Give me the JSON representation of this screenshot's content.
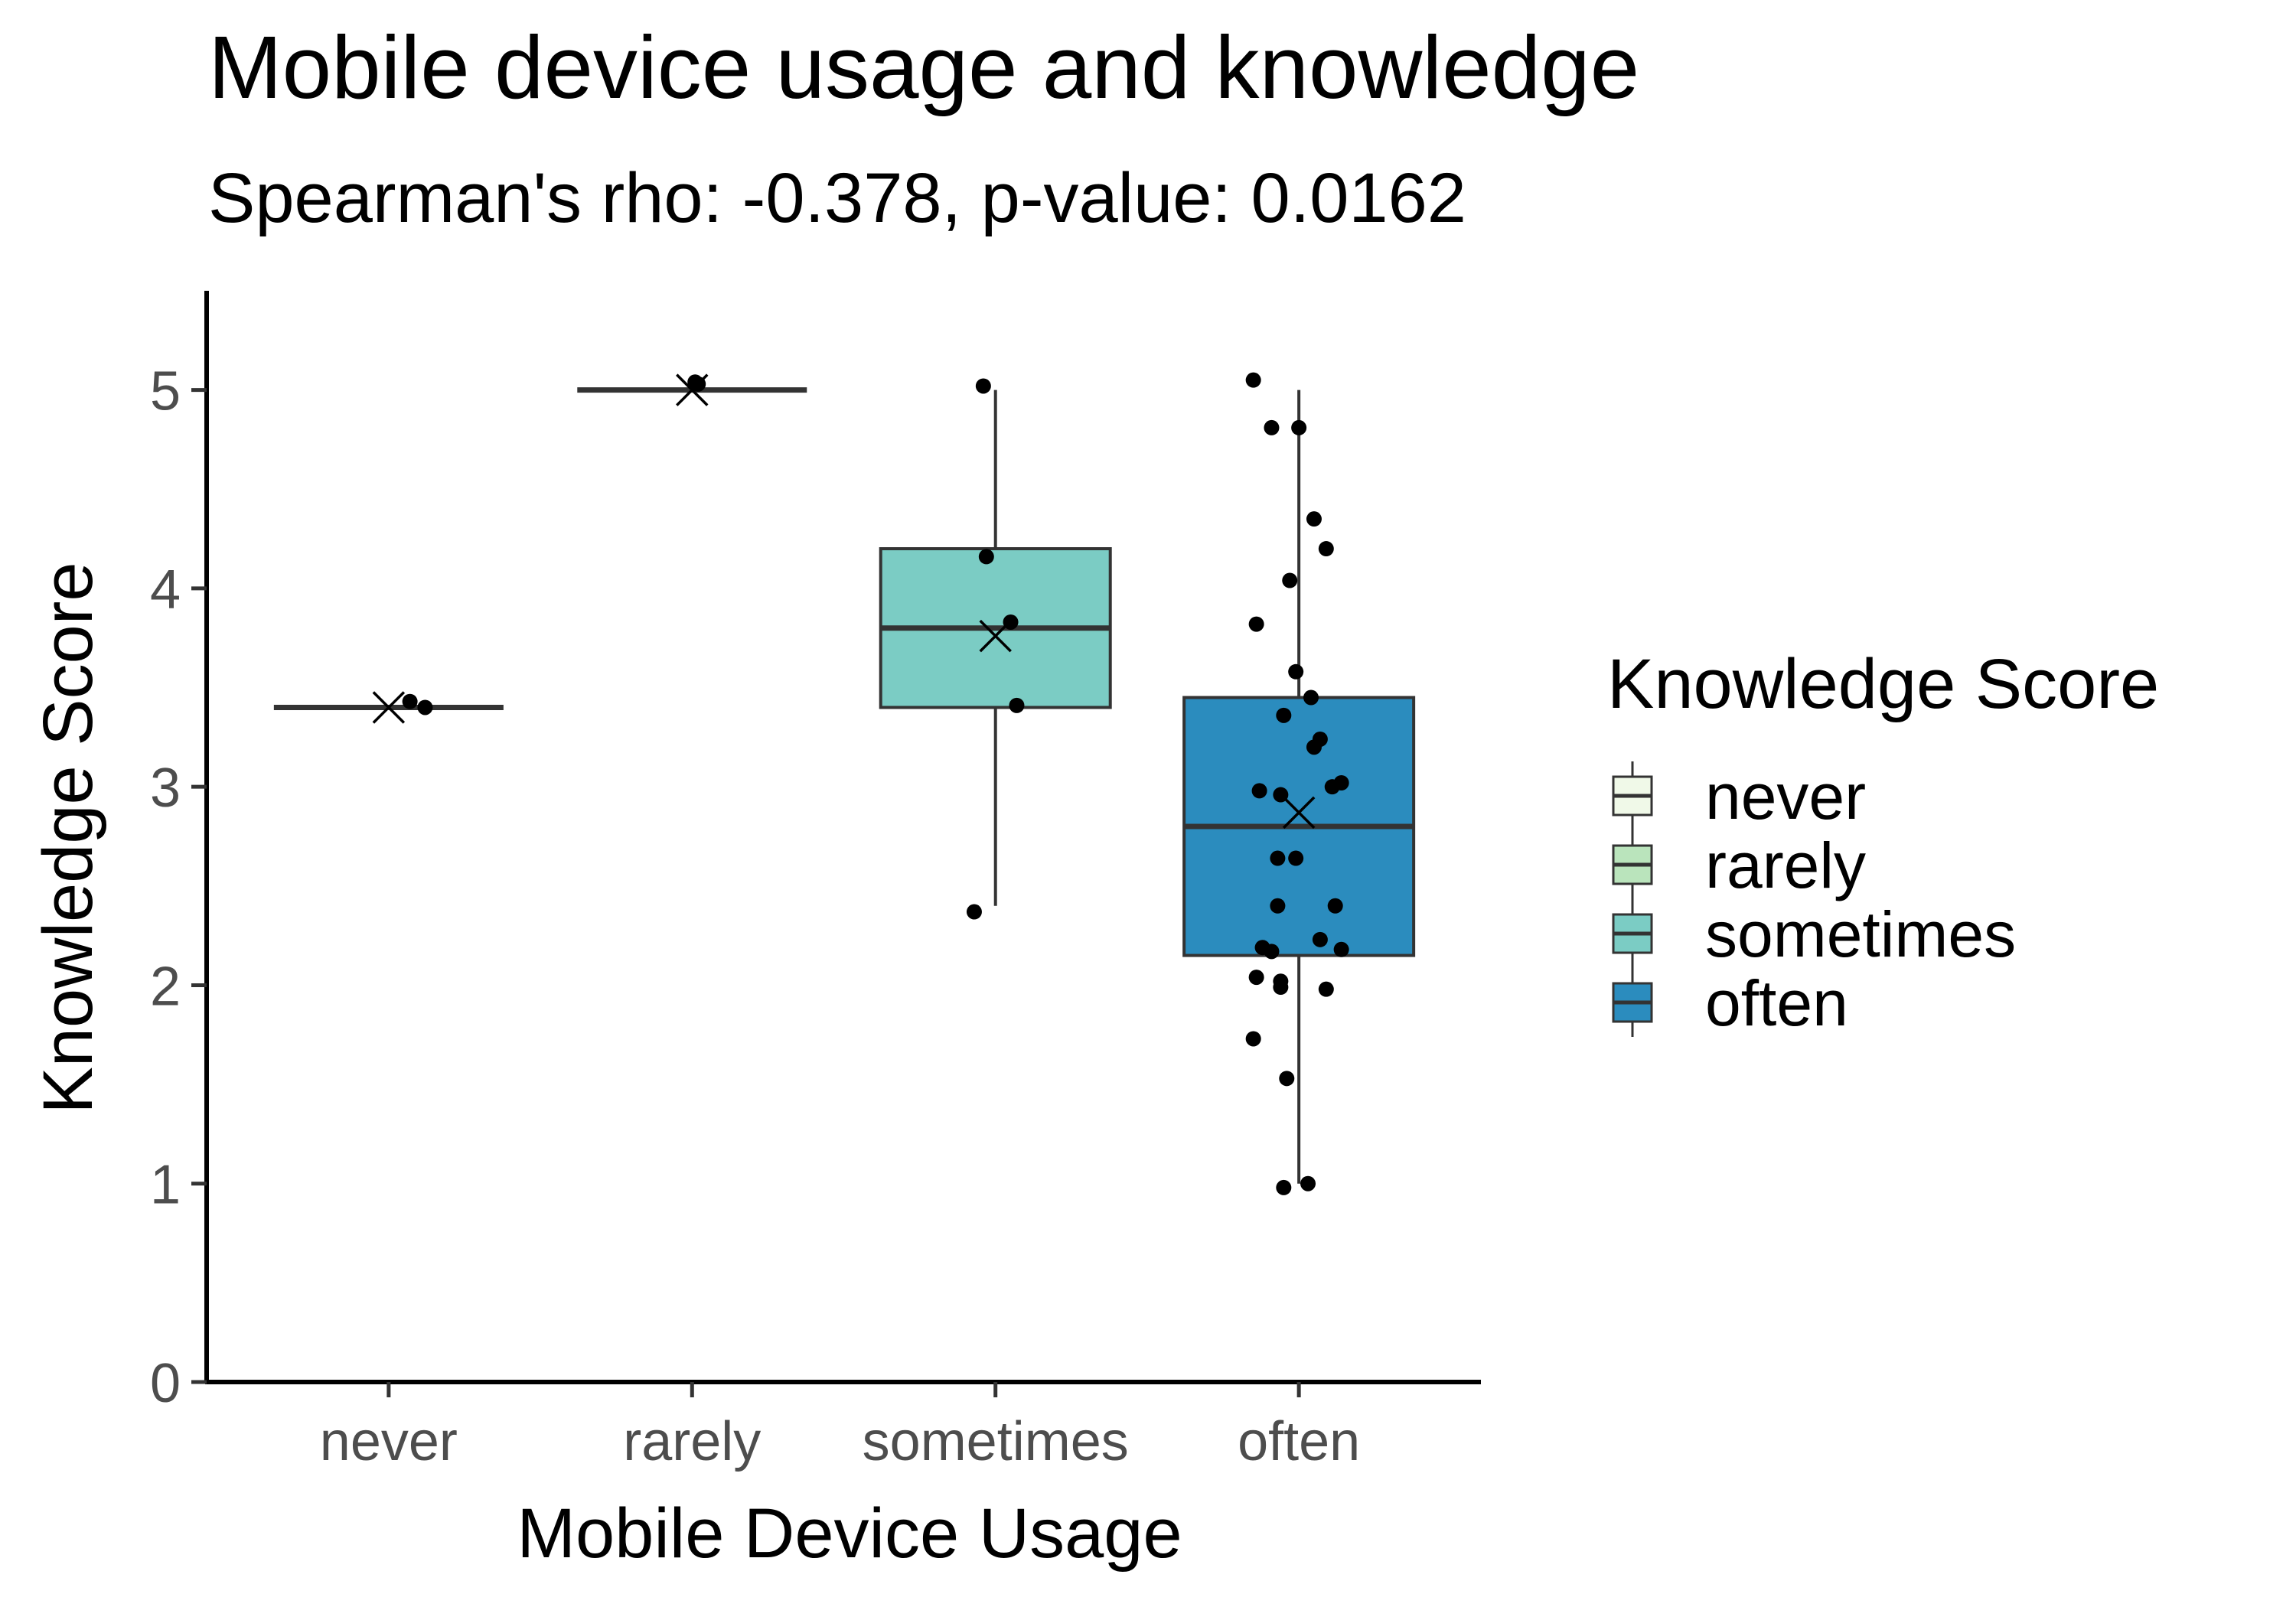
{
  "chart_data": {
    "type": "boxplot",
    "title": "Mobile device usage and knowledge",
    "subtitle": "Spearman's rho: -0.378, p-value: 0.0162",
    "xlabel": "Mobile Device Usage",
    "ylabel": "Knowledge Score",
    "ylim": [
      0,
      5.5
    ],
    "y_ticks": [
      0,
      1,
      2,
      3,
      4,
      5
    ],
    "categories": [
      "never",
      "rarely",
      "sometimes",
      "often"
    ],
    "grid": false,
    "legend": {
      "title": "Knowledge Score",
      "position": "right",
      "entries": [
        {
          "label": "never",
          "color": "#f0f9e8"
        },
        {
          "label": "rarely",
          "color": "#bae4bc"
        },
        {
          "label": "sometimes",
          "color": "#7bccc4"
        },
        {
          "label": "often",
          "color": "#2b8cbe"
        }
      ]
    },
    "boxes": [
      {
        "category": "never",
        "color": "#f0f9e8",
        "min": 3.4,
        "q1": 3.4,
        "median": 3.4,
        "q3": 3.4,
        "max": 3.4,
        "mean": 3.4
      },
      {
        "category": "rarely",
        "color": "#bae4bc",
        "min": 5.0,
        "q1": 5.0,
        "median": 5.0,
        "q3": 5.0,
        "max": 5.0,
        "mean": 5.0
      },
      {
        "category": "sometimes",
        "color": "#7bccc4",
        "min": 2.4,
        "q1": 3.4,
        "median": 3.8,
        "q3": 4.2,
        "max": 5.0,
        "mean": 3.76
      },
      {
        "category": "often",
        "color": "#2b8cbe",
        "min": 1.0,
        "q1": 2.15,
        "median": 2.8,
        "q3": 3.45,
        "max": 5.0,
        "mean": 2.87
      }
    ],
    "points": [
      {
        "category": "never",
        "jitter": 0.07,
        "y": 3.43
      },
      {
        "category": "never",
        "jitter": 0.12,
        "y": 3.4
      },
      {
        "category": "rarely",
        "jitter": 0.01,
        "y": 5.04
      },
      {
        "category": "rarely",
        "jitter": 0.02,
        "y": 5.03
      },
      {
        "category": "sometimes",
        "jitter": -0.04,
        "y": 5.02
      },
      {
        "category": "sometimes",
        "jitter": -0.03,
        "y": 4.16
      },
      {
        "category": "sometimes",
        "jitter": 0.05,
        "y": 3.83
      },
      {
        "category": "sometimes",
        "jitter": 0.07,
        "y": 3.41
      },
      {
        "category": "sometimes",
        "jitter": -0.07,
        "y": 2.37
      },
      {
        "category": "often",
        "jitter": -0.15,
        "y": 5.05
      },
      {
        "category": "often",
        "jitter": -0.09,
        "y": 4.81
      },
      {
        "category": "often",
        "jitter": 0.0,
        "y": 4.81
      },
      {
        "category": "often",
        "jitter": 0.05,
        "y": 4.35
      },
      {
        "category": "often",
        "jitter": 0.09,
        "y": 4.2
      },
      {
        "category": "often",
        "jitter": -0.03,
        "y": 4.04
      },
      {
        "category": "often",
        "jitter": -0.14,
        "y": 3.82
      },
      {
        "category": "often",
        "jitter": -0.01,
        "y": 3.58
      },
      {
        "category": "often",
        "jitter": 0.04,
        "y": 3.45
      },
      {
        "category": "often",
        "jitter": -0.05,
        "y": 3.36
      },
      {
        "category": "often",
        "jitter": 0.07,
        "y": 3.24
      },
      {
        "category": "often",
        "jitter": 0.05,
        "y": 3.2
      },
      {
        "category": "often",
        "jitter": 0.14,
        "y": 3.02
      },
      {
        "category": "often",
        "jitter": 0.11,
        "y": 3.0
      },
      {
        "category": "often",
        "jitter": -0.13,
        "y": 2.98
      },
      {
        "category": "often",
        "jitter": -0.06,
        "y": 2.96
      },
      {
        "category": "often",
        "jitter": -0.07,
        "y": 2.64
      },
      {
        "category": "often",
        "jitter": -0.01,
        "y": 2.64
      },
      {
        "category": "often",
        "jitter": 0.12,
        "y": 2.4
      },
      {
        "category": "often",
        "jitter": -0.07,
        "y": 2.4
      },
      {
        "category": "often",
        "jitter": 0.07,
        "y": 2.23
      },
      {
        "category": "often",
        "jitter": 0.14,
        "y": 2.18
      },
      {
        "category": "often",
        "jitter": -0.12,
        "y": 2.19
      },
      {
        "category": "often",
        "jitter": -0.09,
        "y": 2.17
      },
      {
        "category": "often",
        "jitter": -0.14,
        "y": 2.04
      },
      {
        "category": "often",
        "jitter": -0.06,
        "y": 2.02
      },
      {
        "category": "often",
        "jitter": -0.06,
        "y": 1.99
      },
      {
        "category": "often",
        "jitter": 0.09,
        "y": 1.98
      },
      {
        "category": "often",
        "jitter": -0.15,
        "y": 1.73
      },
      {
        "category": "often",
        "jitter": -0.04,
        "y": 1.53
      },
      {
        "category": "often",
        "jitter": -0.05,
        "y": 0.98
      },
      {
        "category": "often",
        "jitter": 0.03,
        "y": 1.0
      }
    ]
  }
}
